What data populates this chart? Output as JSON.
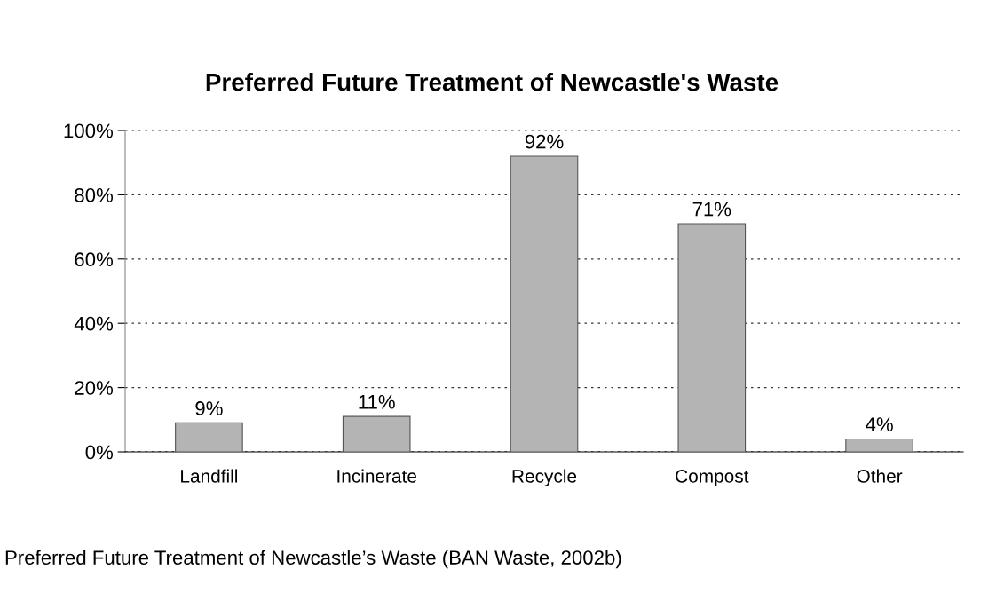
{
  "chart_data": {
    "type": "bar",
    "title": "Preferred Future Treatment of Newcastle's Waste",
    "categories": [
      "Landfill",
      "Incinerate",
      "Recycle",
      "Compost",
      "Other"
    ],
    "values": [
      9,
      11,
      92,
      71,
      4
    ],
    "value_labels": [
      "9%",
      "11%",
      "92%",
      "71%",
      "4%"
    ],
    "color": "#b4b4b4",
    "ylim": [
      0,
      100
    ],
    "yticks": [
      {
        "value": 0,
        "label": "0%"
      },
      {
        "value": 20,
        "label": "20%"
      },
      {
        "value": 40,
        "label": "40%"
      },
      {
        "value": 60,
        "label": "60%"
      },
      {
        "value": 80,
        "label": "80%"
      },
      {
        "value": 100,
        "label": "100%"
      }
    ],
    "grid": "y",
    "annotations": [
      "Preferred Future Treatment of Newcastle’s Waste (BAN Waste, 2002b)"
    ]
  }
}
